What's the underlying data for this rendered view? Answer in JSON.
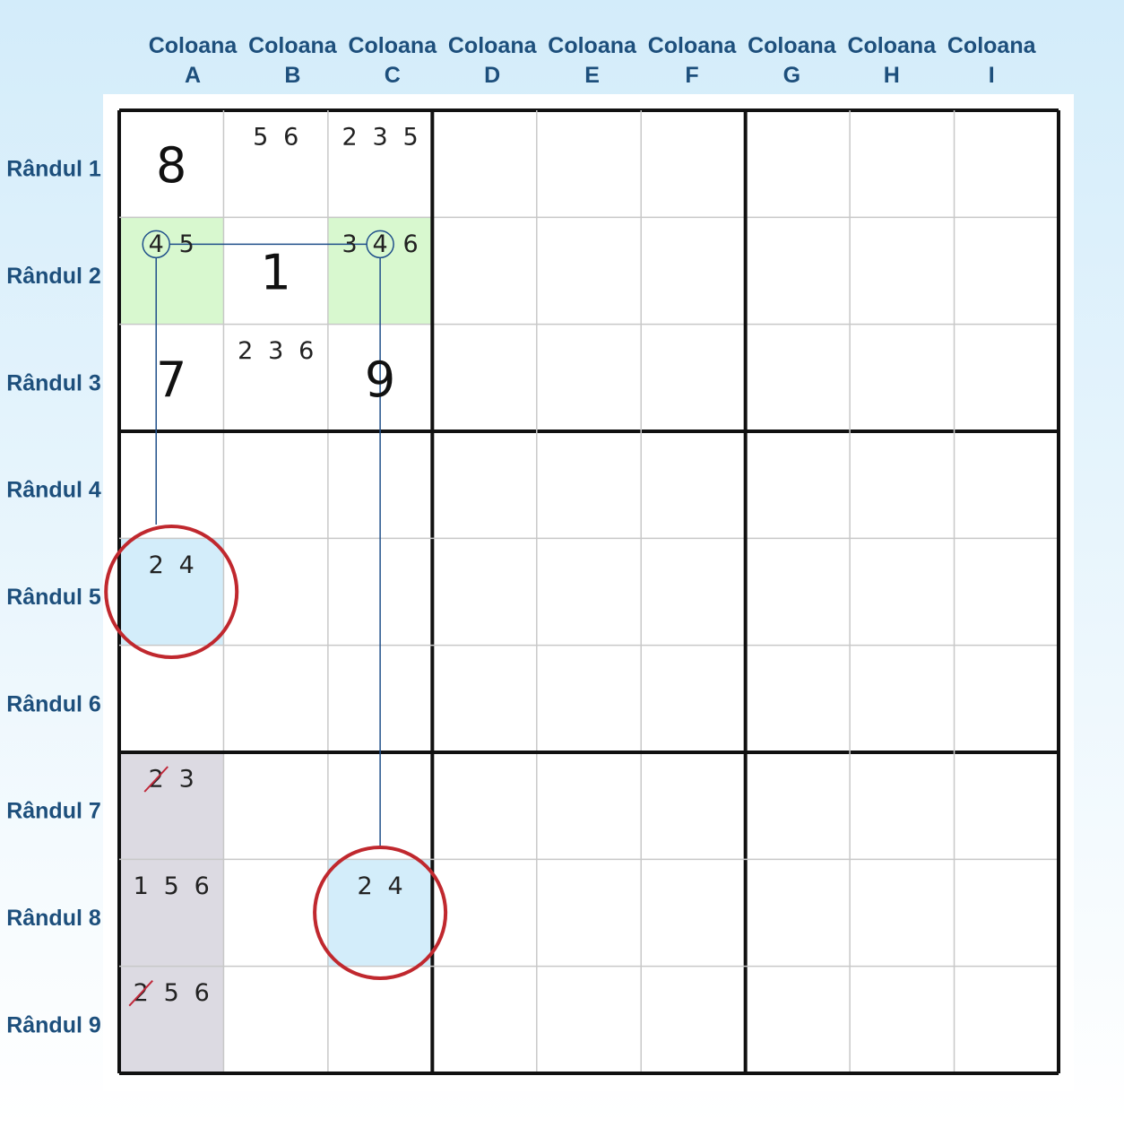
{
  "columns": [
    {
      "label": "Coloana",
      "letter": "A"
    },
    {
      "label": "Coloana",
      "letter": "B"
    },
    {
      "label": "Coloana",
      "letter": "C"
    },
    {
      "label": "Coloana",
      "letter": "D"
    },
    {
      "label": "Coloana",
      "letter": "E"
    },
    {
      "label": "Coloana",
      "letter": "F"
    },
    {
      "label": "Coloana",
      "letter": "G"
    },
    {
      "label": "Coloana",
      "letter": "H"
    },
    {
      "label": "Coloana",
      "letter": "I"
    }
  ],
  "rows": [
    "Rândul 1",
    "Rândul 2",
    "Rândul 3",
    "Rândul 4",
    "Rândul 5",
    "Rândul 6",
    "Rândul 7",
    "Rândul 8",
    "Rândul 9"
  ],
  "grid": [
    [
      {
        "digit": 8
      },
      {
        "notes": [
          {
            "text": 5
          },
          {
            "text": 6
          }
        ]
      },
      {
        "notes": [
          {
            "text": 2
          },
          {
            "text": 3
          },
          {
            "text": 5
          }
        ]
      },
      null,
      null,
      null,
      null,
      null,
      null
    ],
    [
      {
        "highlight": "green",
        "notes": [
          {
            "text": 4,
            "circled": true
          },
          {
            "text": 5
          }
        ]
      },
      {
        "digit": 1
      },
      {
        "highlight": "green",
        "notes": [
          {
            "text": 3
          },
          {
            "text": 4,
            "circled": true
          },
          {
            "text": 6
          }
        ]
      },
      null,
      null,
      null,
      null,
      null,
      null
    ],
    [
      {
        "digit": 7
      },
      {
        "notes": [
          {
            "text": 2
          },
          {
            "text": 3
          },
          {
            "text": 6
          }
        ]
      },
      {
        "digit": 9
      },
      null,
      null,
      null,
      null,
      null,
      null
    ],
    [
      null,
      null,
      null,
      null,
      null,
      null,
      null,
      null,
      null
    ],
    [
      {
        "highlight": "blue",
        "marked": true,
        "notes": [
          {
            "text": 2
          },
          {
            "text": 4
          }
        ]
      },
      null,
      null,
      null,
      null,
      null,
      null,
      null,
      null
    ],
    [
      null,
      null,
      null,
      null,
      null,
      null,
      null,
      null,
      null
    ],
    [
      {
        "highlight": "gray",
        "notes": [
          {
            "text": 2,
            "struck": true
          },
          {
            "text": 3
          }
        ]
      },
      null,
      null,
      null,
      null,
      null,
      null,
      null,
      null
    ],
    [
      {
        "highlight": "gray",
        "notes": [
          {
            "text": 1
          },
          {
            "text": 5
          },
          {
            "text": 6
          }
        ]
      },
      null,
      {
        "highlight": "blue",
        "marked": true,
        "notes": [
          {
            "text": 2
          },
          {
            "text": 4
          }
        ]
      },
      null,
      null,
      null,
      null,
      null,
      null
    ],
    [
      {
        "highlight": "gray",
        "notes": [
          {
            "text": 2,
            "struck": true
          },
          {
            "text": 5
          },
          {
            "text": 6
          }
        ]
      },
      null,
      null,
      null,
      null,
      null,
      null,
      null,
      null
    ]
  ]
}
